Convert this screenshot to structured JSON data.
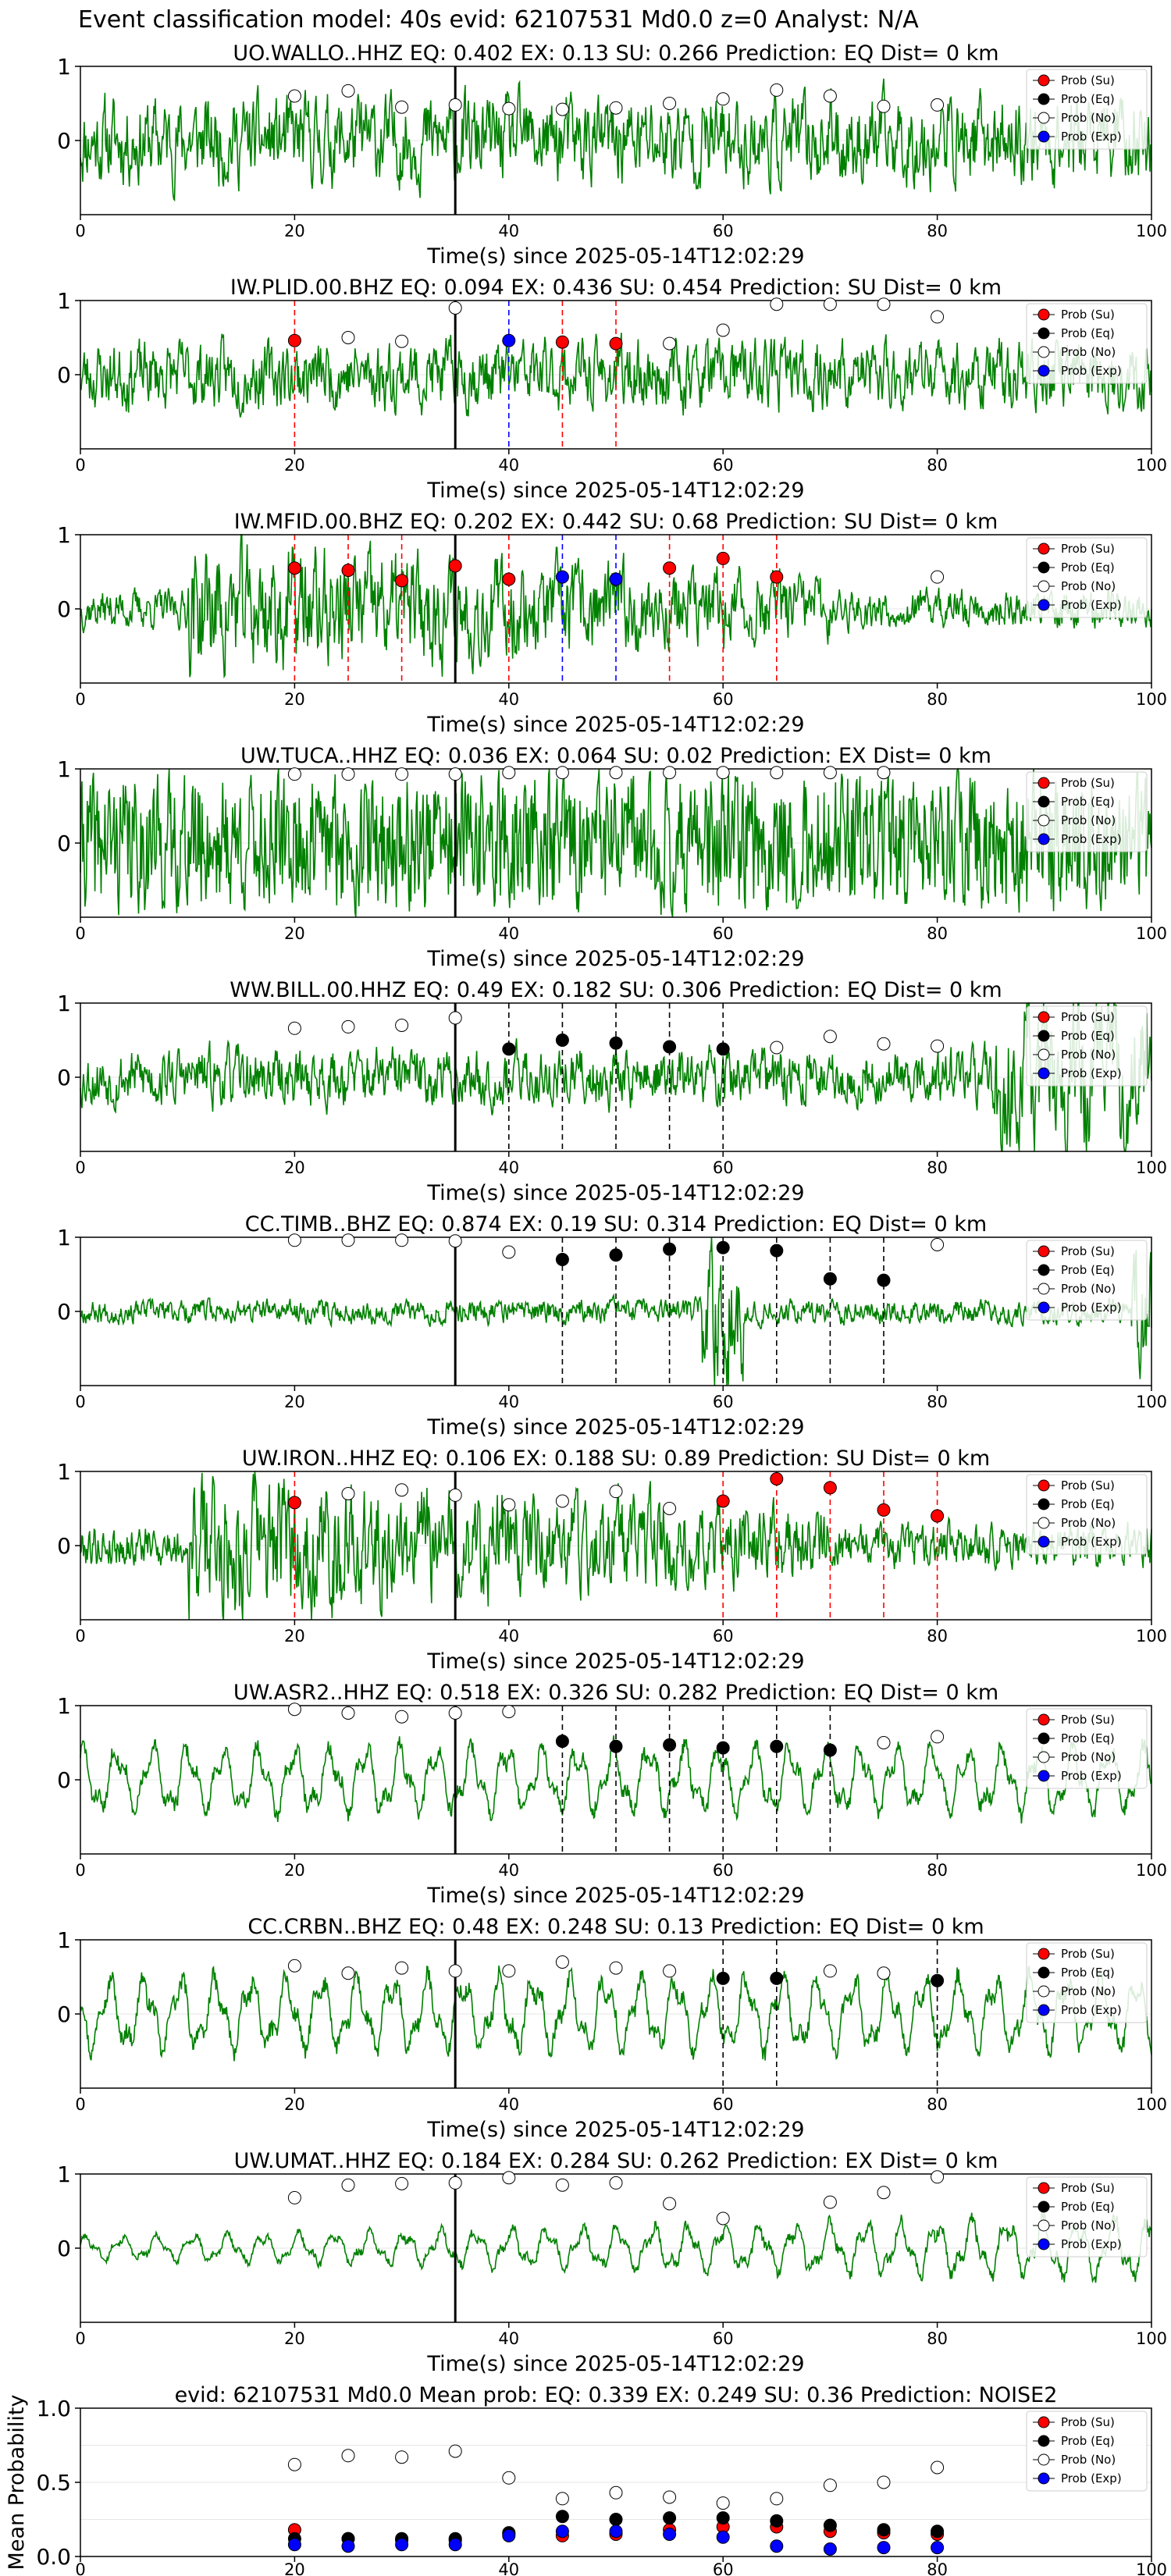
{
  "figure_title": "Event classification model: 40s evid: 62107531 Md0.0 z=0 Analyst: N/A",
  "legend_entries": [
    "Prob (Su)",
    "Prob (Eq)",
    "Prob (No)",
    "Prob (Exp)"
  ],
  "colors": {
    "su": "#ff0000",
    "eq": "#000000",
    "no": "#ffffff",
    "exp": "#0000ff",
    "trace": "#008000",
    "event_line": "#000000"
  },
  "chart_data": [
    {
      "type": "line",
      "title": "UO.WALLO..HHZ   EQ: 0.402  EX: 0.13  SU: 0.266   Prediction: EQ    Dist= 0 km",
      "xlabel": "Time(s) since 2025-05-14T12:02:29",
      "ylabel": "",
      "xlim": [
        0,
        100
      ],
      "xticks": [
        0,
        20,
        40,
        60,
        80,
        100
      ],
      "ylim": [
        -1,
        1
      ],
      "yticks": [
        0,
        1
      ],
      "event_time": 35,
      "noise_amp": 0.45,
      "noise_seed": 11,
      "noise_style": "broadband",
      "series": [
        {
          "name": "Prob (No)",
          "x": [
            20,
            25,
            30,
            35,
            40,
            45,
            50,
            55,
            60,
            65,
            70,
            75,
            80
          ],
          "values": [
            0.6,
            0.67,
            0.45,
            0.48,
            0.43,
            0.42,
            0.44,
            0.5,
            0.56,
            0.68,
            0.6,
            0.46,
            0.48
          ]
        }
      ],
      "dashed_lines": []
    },
    {
      "type": "line",
      "title": "IW.PLID.00.BHZ   EQ: 0.094  EX: 0.436  SU: 0.454   Prediction: SU    Dist= 0 km",
      "xlabel": "Time(s) since 2025-05-14T12:02:29",
      "ylabel": "",
      "xlim": [
        0,
        100
      ],
      "xticks": [
        0,
        20,
        40,
        60,
        80,
        100
      ],
      "ylim": [
        -1,
        1
      ],
      "yticks": [
        0,
        1
      ],
      "event_time": 35,
      "noise_amp": 0.35,
      "noise_seed": 23,
      "noise_style": "broadband",
      "series": [
        {
          "name": "Prob (Su)",
          "x": [
            20,
            45,
            50
          ],
          "values": [
            0.46,
            0.44,
            0.42
          ]
        },
        {
          "name": "Prob (Exp)",
          "x": [
            40
          ],
          "values": [
            0.46
          ]
        },
        {
          "name": "Prob (No)",
          "x": [
            25,
            30,
            35,
            55,
            60,
            65,
            70,
            75,
            80
          ],
          "values": [
            0.5,
            0.45,
            0.9,
            0.42,
            0.6,
            0.95,
            0.95,
            0.95,
            0.78
          ]
        }
      ],
      "dashed_lines": [
        {
          "x": 20,
          "color": "#ff0000"
        },
        {
          "x": 40,
          "color": "#0000ff"
        },
        {
          "x": 45,
          "color": "#ff0000"
        },
        {
          "x": 50,
          "color": "#ff0000"
        }
      ]
    },
    {
      "type": "line",
      "title": "IW.MFID.00.BHZ   EQ: 0.202  EX: 0.442  SU: 0.68   Prediction: SU    Dist= 0 km",
      "xlabel": "Time(s) since 2025-05-14T12:02:29",
      "ylabel": "",
      "xlim": [
        0,
        100
      ],
      "xticks": [
        0,
        20,
        40,
        60,
        80,
        100
      ],
      "ylim": [
        -1,
        1
      ],
      "yticks": [
        0,
        1
      ],
      "event_time": 35,
      "noise_amp": 0.5,
      "noise_seed": 37,
      "noise_style": "decay",
      "series": [
        {
          "name": "Prob (Su)",
          "x": [
            20,
            25,
            30,
            35,
            40,
            55,
            60,
            65
          ],
          "values": [
            0.55,
            0.52,
            0.38,
            0.58,
            0.4,
            0.55,
            0.68,
            0.43
          ]
        },
        {
          "name": "Prob (Exp)",
          "x": [
            45,
            50
          ],
          "values": [
            0.43,
            0.4
          ]
        },
        {
          "name": "Prob (No)",
          "x": [
            80
          ],
          "values": [
            0.43
          ]
        }
      ],
      "dashed_lines": [
        {
          "x": 20,
          "color": "#ff0000"
        },
        {
          "x": 25,
          "color": "#ff0000"
        },
        {
          "x": 30,
          "color": "#ff0000"
        },
        {
          "x": 40,
          "color": "#ff0000"
        },
        {
          "x": 45,
          "color": "#0000ff"
        },
        {
          "x": 50,
          "color": "#0000ff"
        },
        {
          "x": 55,
          "color": "#ff0000"
        },
        {
          "x": 60,
          "color": "#ff0000"
        },
        {
          "x": 65,
          "color": "#ff0000"
        }
      ]
    },
    {
      "type": "line",
      "title": "UW.TUCA..HHZ   EQ: 0.036  EX: 0.064  SU: 0.02   Prediction: EX    Dist= 0 km",
      "xlabel": "Time(s) since 2025-05-14T12:02:29",
      "ylabel": "",
      "xlim": [
        0,
        100
      ],
      "xticks": [
        0,
        20,
        40,
        60,
        80,
        100
      ],
      "ylim": [
        -1,
        1
      ],
      "yticks": [
        0,
        1
      ],
      "event_time": 35,
      "noise_amp": 0.8,
      "noise_seed": 41,
      "noise_style": "dense",
      "series": [
        {
          "name": "Prob (No)",
          "x": [
            20,
            25,
            30,
            35,
            40,
            45,
            50,
            55,
            60,
            65,
            70,
            75
          ],
          "values": [
            0.93,
            0.93,
            0.93,
            0.93,
            0.95,
            0.95,
            0.95,
            0.95,
            0.95,
            0.95,
            0.95,
            0.95
          ]
        }
      ],
      "dashed_lines": []
    },
    {
      "type": "line",
      "title": "WW.BILL.00.HHZ   EQ: 0.49  EX: 0.182  SU: 0.306   Prediction: EQ    Dist= 0 km",
      "xlabel": "Time(s) since 2025-05-14T12:02:29",
      "ylabel": "",
      "xlim": [
        0,
        100
      ],
      "xticks": [
        0,
        20,
        40,
        60,
        80,
        100
      ],
      "ylim": [
        -1,
        1
      ],
      "yticks": [
        0,
        1
      ],
      "event_time": 35,
      "noise_amp": 0.3,
      "noise_seed": 53,
      "noise_style": "late_burst",
      "series": [
        {
          "name": "Prob (Eq)",
          "x": [
            40,
            45,
            50,
            55,
            60
          ],
          "values": [
            0.38,
            0.5,
            0.46,
            0.41,
            0.38
          ]
        },
        {
          "name": "Prob (No)",
          "x": [
            20,
            25,
            30,
            35,
            65,
            70,
            75,
            80
          ],
          "values": [
            0.66,
            0.68,
            0.7,
            0.8,
            0.4,
            0.55,
            0.45,
            0.42
          ]
        }
      ],
      "dashed_lines": [
        {
          "x": 40,
          "color": "#000000"
        },
        {
          "x": 45,
          "color": "#000000"
        },
        {
          "x": 50,
          "color": "#000000"
        },
        {
          "x": 55,
          "color": "#000000"
        },
        {
          "x": 60,
          "color": "#000000"
        }
      ]
    },
    {
      "type": "line",
      "title": "CC.TIMB..BHZ   EQ: 0.874  EX: 0.19  SU: 0.314   Prediction: EQ    Dist= 0 km",
      "xlabel": "Time(s) since 2025-05-14T12:02:29",
      "ylabel": "",
      "xlim": [
        0,
        100
      ],
      "xticks": [
        0,
        20,
        40,
        60,
        80,
        100
      ],
      "ylim": [
        -1,
        1
      ],
      "yticks": [
        0,
        1
      ],
      "event_time": 35,
      "noise_amp": 0.12,
      "noise_seed": 67,
      "noise_style": "spike60",
      "series": [
        {
          "name": "Prob (Eq)",
          "x": [
            45,
            50,
            55,
            60,
            65,
            70,
            75
          ],
          "values": [
            0.7,
            0.76,
            0.84,
            0.86,
            0.82,
            0.44,
            0.42
          ]
        },
        {
          "name": "Prob (No)",
          "x": [
            20,
            25,
            30,
            35,
            40,
            80
          ],
          "values": [
            0.96,
            0.96,
            0.96,
            0.95,
            0.8,
            0.9
          ]
        }
      ],
      "dashed_lines": [
        {
          "x": 45,
          "color": "#000000"
        },
        {
          "x": 50,
          "color": "#000000"
        },
        {
          "x": 55,
          "color": "#000000"
        },
        {
          "x": 60,
          "color": "#000000"
        },
        {
          "x": 65,
          "color": "#000000"
        },
        {
          "x": 70,
          "color": "#000000"
        },
        {
          "x": 75,
          "color": "#000000"
        }
      ]
    },
    {
      "type": "line",
      "title": "UW.IRON..HHZ   EQ: 0.106  EX: 0.188  SU: 0.89   Prediction: SU    Dist= 0 km",
      "xlabel": "Time(s) since 2025-05-14T12:02:29",
      "ylabel": "",
      "xlim": [
        0,
        100
      ],
      "xticks": [
        0,
        20,
        40,
        60,
        80,
        100
      ],
      "ylim": [
        -1,
        1
      ],
      "yticks": [
        0,
        1
      ],
      "event_time": 35,
      "noise_amp": 0.55,
      "noise_seed": 79,
      "noise_style": "decay",
      "series": [
        {
          "name": "Prob (Su)",
          "x": [
            20,
            60,
            65,
            70,
            75,
            80
          ],
          "values": [
            0.58,
            0.6,
            0.9,
            0.78,
            0.48,
            0.4
          ]
        },
        {
          "name": "Prob (No)",
          "x": [
            25,
            30,
            35,
            40,
            45,
            50,
            55
          ],
          "values": [
            0.7,
            0.75,
            0.68,
            0.55,
            0.6,
            0.73,
            0.5
          ]
        }
      ],
      "dashed_lines": [
        {
          "x": 20,
          "color": "#ff0000"
        },
        {
          "x": 60,
          "color": "#ff0000"
        },
        {
          "x": 65,
          "color": "#ff0000"
        },
        {
          "x": 70,
          "color": "#ff0000"
        },
        {
          "x": 75,
          "color": "#ff0000"
        },
        {
          "x": 80,
          "color": "#ff0000"
        }
      ]
    },
    {
      "type": "line",
      "title": "UW.ASR2..HHZ   EQ: 0.518  EX: 0.326  SU: 0.282   Prediction: EQ    Dist= 0 km",
      "xlabel": "Time(s) since 2025-05-14T12:02:29",
      "ylabel": "",
      "xlim": [
        0,
        100
      ],
      "xticks": [
        0,
        20,
        40,
        60,
        80,
        100
      ],
      "ylim": [
        -1,
        1
      ],
      "yticks": [
        0,
        1
      ],
      "event_time": 35,
      "noise_amp": 0.5,
      "noise_seed": 83,
      "noise_style": "smooth",
      "series": [
        {
          "name": "Prob (Eq)",
          "x": [
            45,
            50,
            55,
            60,
            65,
            70
          ],
          "values": [
            0.52,
            0.45,
            0.47,
            0.43,
            0.45,
            0.4
          ]
        },
        {
          "name": "Prob (No)",
          "x": [
            20,
            25,
            30,
            35,
            40,
            75,
            80
          ],
          "values": [
            0.95,
            0.9,
            0.85,
            0.9,
            0.92,
            0.5,
            0.58
          ]
        }
      ],
      "dashed_lines": [
        {
          "x": 45,
          "color": "#000000"
        },
        {
          "x": 50,
          "color": "#000000"
        },
        {
          "x": 55,
          "color": "#000000"
        },
        {
          "x": 60,
          "color": "#000000"
        },
        {
          "x": 65,
          "color": "#000000"
        },
        {
          "x": 70,
          "color": "#000000"
        }
      ]
    },
    {
      "type": "line",
      "title": "CC.CRBN..BHZ   EQ: 0.48  EX: 0.248  SU: 0.13   Prediction: EQ    Dist= 0 km",
      "xlabel": "Time(s) since 2025-05-14T12:02:29",
      "ylabel": "",
      "xlim": [
        0,
        100
      ],
      "xticks": [
        0,
        20,
        40,
        60,
        80,
        100
      ],
      "ylim": [
        -1,
        1
      ],
      "yticks": [
        0,
        1
      ],
      "event_time": 35,
      "noise_amp": 0.55,
      "noise_seed": 97,
      "noise_style": "smooth",
      "series": [
        {
          "name": "Prob (Eq)",
          "x": [
            60,
            65,
            80
          ],
          "values": [
            0.48,
            0.48,
            0.45
          ]
        },
        {
          "name": "Prob (No)",
          "x": [
            20,
            25,
            30,
            35,
            40,
            45,
            50,
            55,
            70,
            75
          ],
          "values": [
            0.65,
            0.55,
            0.62,
            0.58,
            0.58,
            0.7,
            0.62,
            0.58,
            0.58,
            0.55
          ]
        }
      ],
      "dashed_lines": [
        {
          "x": 60,
          "color": "#000000"
        },
        {
          "x": 65,
          "color": "#000000"
        },
        {
          "x": 80,
          "color": "#000000"
        }
      ]
    },
    {
      "type": "line",
      "title": "UW.UMAT..HHZ   EQ: 0.184  EX: 0.284  SU: 0.262   Prediction: EX    Dist= 0 km",
      "xlabel": "Time(s) since 2025-05-14T12:02:29",
      "ylabel": "",
      "xlim": [
        0,
        100
      ],
      "xticks": [
        0,
        20,
        40,
        60,
        80,
        100
      ],
      "ylim": [
        -1,
        1
      ],
      "yticks": [
        0,
        1
      ],
      "event_time": 35,
      "noise_amp": 0.35,
      "noise_seed": 101,
      "noise_style": "smooth_growing",
      "series": [
        {
          "name": "Prob (No)",
          "x": [
            20,
            25,
            30,
            35,
            40,
            45,
            50,
            55,
            60,
            70,
            75,
            80
          ],
          "values": [
            0.68,
            0.85,
            0.87,
            0.88,
            0.95,
            0.85,
            0.88,
            0.6,
            0.4,
            0.62,
            0.75,
            0.96
          ]
        }
      ],
      "dashed_lines": []
    },
    {
      "type": "scatter",
      "title": "evid: 62107531  Md0.0   Mean prob:   EQ: 0.339  EX: 0.249  SU: 0.36   Prediction: NOISE2",
      "xlabel": "",
      "ylabel": "Mean Probability",
      "xlim": [
        0,
        100
      ],
      "xticks": [
        0,
        20,
        40,
        60,
        80,
        100
      ],
      "ylim": [
        0,
        1
      ],
      "yticks": [
        0.0,
        0.5,
        1.0
      ],
      "series": [
        {
          "name": "Prob (Su)",
          "x": [
            20,
            25,
            30,
            35,
            40,
            45,
            50,
            55,
            60,
            65,
            70,
            75,
            80
          ],
          "values": [
            0.18,
            0.12,
            0.11,
            0.11,
            0.15,
            0.14,
            0.15,
            0.18,
            0.2,
            0.2,
            0.17,
            0.16,
            0.15
          ]
        },
        {
          "name": "Prob (Eq)",
          "x": [
            20,
            25,
            30,
            35,
            40,
            45,
            50,
            55,
            60,
            65,
            70,
            75,
            80
          ],
          "values": [
            0.12,
            0.12,
            0.12,
            0.12,
            0.16,
            0.27,
            0.25,
            0.26,
            0.26,
            0.24,
            0.21,
            0.18,
            0.17
          ]
        },
        {
          "name": "Prob (No)",
          "x": [
            20,
            25,
            30,
            35,
            40,
            45,
            50,
            55,
            60,
            65,
            70,
            75,
            80
          ],
          "values": [
            0.62,
            0.68,
            0.67,
            0.71,
            0.53,
            0.39,
            0.43,
            0.4,
            0.36,
            0.39,
            0.48,
            0.5,
            0.6
          ]
        },
        {
          "name": "Prob (Exp)",
          "x": [
            20,
            25,
            30,
            35,
            40,
            45,
            50,
            55,
            60,
            65,
            70,
            75,
            80
          ],
          "values": [
            0.08,
            0.07,
            0.08,
            0.08,
            0.14,
            0.17,
            0.17,
            0.15,
            0.13,
            0.07,
            0.05,
            0.06,
            0.06
          ]
        }
      ]
    }
  ]
}
